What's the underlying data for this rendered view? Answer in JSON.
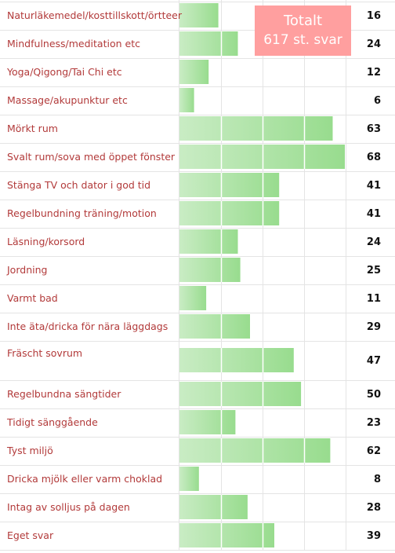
{
  "badge": {
    "line1": "Totalt",
    "line2": "617 st. svar"
  },
  "chart_data": {
    "type": "bar",
    "orientation": "horizontal",
    "categories": [
      "Naturläkemedel/kosttillskott/örtteer",
      "Mindfulness/meditation etc",
      "Yoga/Qigong/Tai Chi etc",
      "Massage/akupunktur etc",
      "Mörkt rum",
      "Svalt rum/sova med öppet fönster",
      "Stänga TV och dator i god tid",
      "Regelbundning träning/motion",
      "Läsning/korsord",
      "Jordning",
      "Varmt bad",
      "Inte äta/dricka för nära läggdags",
      "Fräscht sovrum",
      "Regelbundna sängtider",
      "Tidigt sänggående",
      "Tyst miljö",
      "Dricka mjölk eller varm choklad",
      "Intag av solljus på dagen",
      "Eget svar"
    ],
    "values": [
      16,
      24,
      12,
      6,
      63,
      68,
      41,
      41,
      24,
      25,
      11,
      29,
      47,
      50,
      23,
      62,
      8,
      28,
      39
    ],
    "xlim": [
      0,
      68
    ],
    "grid": true,
    "colors": {
      "bar_light": "#c9ecc4",
      "bar_dark": "#98dc8e",
      "label": "#b23a3a",
      "grid": "#e4e4e4"
    }
  }
}
